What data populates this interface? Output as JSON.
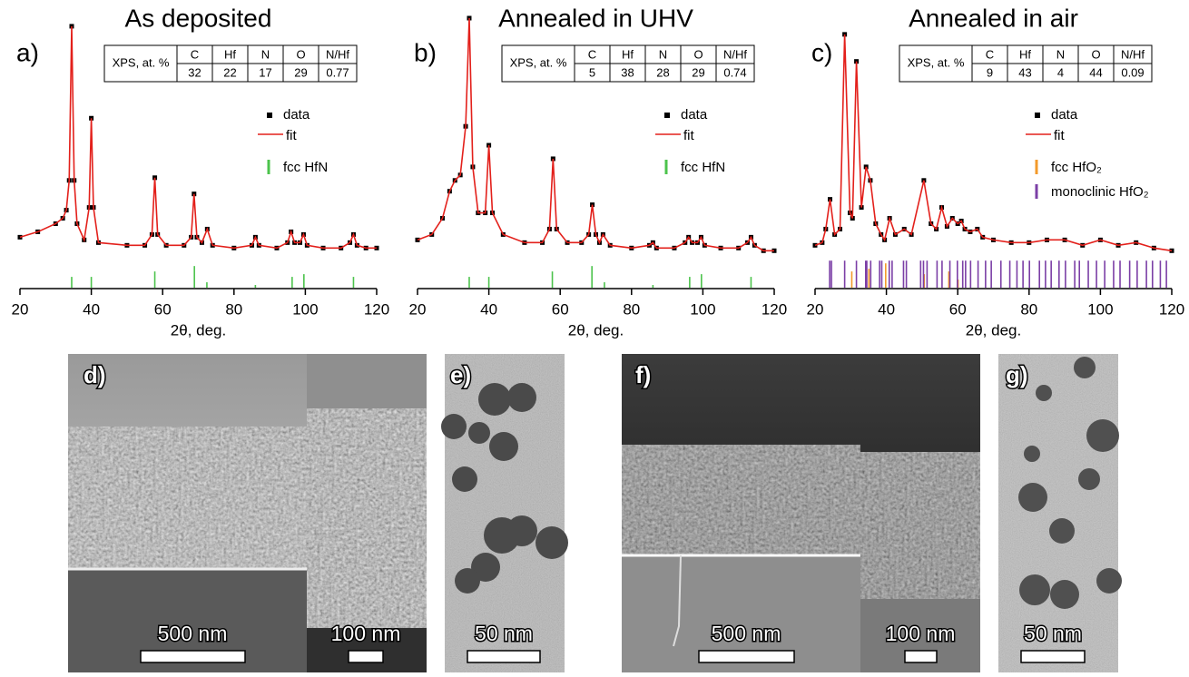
{
  "chart_data": [
    {
      "type": "line",
      "panel": "a)",
      "title": "As deposited",
      "xlabel": "2θ, deg.",
      "xlim": [
        20,
        120
      ],
      "xticks": [
        20,
        40,
        60,
        80,
        100,
        120
      ],
      "ylim": [
        0,
        100
      ],
      "table": {
        "header": [
          "XPS, at. %",
          "C",
          "Hf",
          "N",
          "O",
          "N/Hf"
        ],
        "row": [
          32,
          22,
          17,
          29,
          0.77
        ]
      },
      "x": [
        20,
        25,
        30,
        32,
        33,
        33.8,
        34.5,
        35.2,
        36,
        38,
        39.4,
        40,
        40.6,
        42,
        50,
        55,
        57,
        57.8,
        58.6,
        61,
        66,
        68,
        68.8,
        69.6,
        71,
        72.5,
        74,
        80,
        85,
        86,
        87,
        92,
        95,
        96,
        97,
        98.5,
        99.5,
        100.5,
        105,
        110,
        112.5,
        113.5,
        114.5,
        117,
        120
      ],
      "series": [
        {
          "name": "data",
          "color": "#000000",
          "values": [
            19,
            21,
            24,
            26,
            29,
            40,
            97,
            40,
            24,
            18,
            30,
            63,
            30,
            17,
            16,
            16,
            20,
            41,
            20,
            16,
            16,
            19,
            35,
            19,
            17,
            22,
            16,
            15,
            16,
            19,
            16,
            15,
            17,
            21,
            17,
            17,
            20,
            16,
            15,
            15,
            17,
            20,
            16,
            15,
            15
          ]
        },
        {
          "name": "fit",
          "color": "#e3201b",
          "values": [
            19,
            21,
            24,
            26,
            29,
            40,
            97,
            40,
            24,
            18,
            30,
            63,
            30,
            17,
            16,
            16,
            20,
            41,
            20,
            16,
            16,
            19,
            35,
            19,
            17,
            22,
            16,
            15,
            16,
            19,
            16,
            15,
            17,
            21,
            17,
            17,
            20,
            16,
            15,
            15,
            17,
            20,
            16,
            15,
            15
          ]
        }
      ],
      "references": [
        {
          "name": "fcc HfN",
          "color": "#4cc34c",
          "x": [
            34.5,
            40,
            57.8,
            68.9,
            72.4,
            86,
            96.3,
            99.6,
            113.5
          ],
          "values": [
            4,
            4,
            6,
            8,
            2,
            1,
            4,
            5,
            4
          ]
        }
      ]
    },
    {
      "type": "line",
      "panel": "b)",
      "title": "Annealed in UHV",
      "xlabel": "2θ, deg.",
      "xlim": [
        20,
        120
      ],
      "xticks": [
        20,
        40,
        60,
        80,
        100,
        120
      ],
      "ylim": [
        0,
        100
      ],
      "table": {
        "header": [
          "XPS, at. %",
          "C",
          "Hf",
          "N",
          "O",
          "N/Hf"
        ],
        "row": [
          5,
          38,
          28,
          29,
          0.74
        ]
      },
      "x": [
        20,
        24,
        27,
        29,
        30.5,
        32,
        33.5,
        34.5,
        35.5,
        37,
        39,
        40,
        41,
        44,
        50,
        55,
        57,
        58,
        59,
        62,
        66,
        68,
        69,
        70,
        71,
        72,
        74,
        80,
        85,
        86,
        87,
        92,
        95,
        96,
        97,
        98.5,
        99.5,
        100.5,
        105,
        110,
        112.5,
        113.5,
        114.5,
        117,
        120
      ],
      "series": [
        {
          "name": "data",
          "color": "#000000",
          "values": [
            18,
            20,
            26,
            36,
            40,
            42,
            60,
            100,
            45,
            28,
            28,
            53,
            28,
            20,
            17,
            17,
            22,
            48,
            22,
            17,
            17,
            20,
            31,
            20,
            17,
            20,
            16,
            15,
            16,
            17,
            15,
            15,
            17,
            19,
            17,
            17,
            19,
            16,
            15,
            15,
            17,
            19,
            16,
            14,
            14
          ]
        },
        {
          "name": "fit",
          "color": "#e3201b",
          "values": [
            18,
            20,
            26,
            36,
            40,
            42,
            60,
            100,
            45,
            28,
            28,
            53,
            28,
            20,
            17,
            17,
            22,
            48,
            22,
            17,
            17,
            20,
            31,
            20,
            17,
            20,
            16,
            15,
            16,
            17,
            15,
            15,
            17,
            19,
            17,
            17,
            19,
            16,
            15,
            15,
            17,
            19,
            16,
            14,
            14
          ]
        }
      ],
      "references": [
        {
          "name": "fcc HfN",
          "color": "#4cc34c",
          "x": [
            34.5,
            40,
            57.8,
            68.9,
            72.4,
            86,
            96.3,
            99.6,
            113.5
          ],
          "values": [
            4,
            4,
            6,
            8,
            2,
            1,
            4,
            5,
            4
          ]
        }
      ]
    },
    {
      "type": "line",
      "panel": "c)",
      "title": "Annealed in air",
      "xlabel": "2θ, deg.",
      "xlim": [
        20,
        120
      ],
      "xticks": [
        20,
        40,
        60,
        80,
        100,
        120
      ],
      "ylim": [
        0,
        100
      ],
      "table": {
        "header": [
          "XPS, at. %",
          "C",
          "Hf",
          "N",
          "O",
          "N/Hf"
        ],
        "row": [
          9,
          43,
          4,
          44,
          0.09
        ]
      },
      "x": [
        20,
        22,
        23,
        24.2,
        25.5,
        27,
        28.3,
        29.8,
        30.5,
        31.6,
        33,
        34.3,
        35.5,
        37,
        38.5,
        39.5,
        40.9,
        42.5,
        45,
        47,
        50.5,
        52.5,
        54,
        55.5,
        57,
        58.5,
        60,
        61,
        62,
        63.5,
        65.5,
        67,
        70,
        75,
        80,
        85,
        90,
        95,
        100,
        105,
        110,
        115,
        120
      ],
      "series": [
        {
          "name": "data",
          "color": "#000000",
          "values": [
            16,
            17,
            22,
            33,
            20,
            22,
            94,
            28,
            26,
            84,
            30,
            45,
            40,
            24,
            20,
            18,
            26,
            20,
            22,
            20,
            40,
            24,
            22,
            30,
            23,
            26,
            24,
            25,
            22,
            21,
            22,
            19,
            18,
            17,
            17,
            18,
            18,
            16,
            18,
            16,
            17,
            15,
            14
          ]
        },
        {
          "name": "fit",
          "color": "#e3201b",
          "values": [
            16,
            17,
            22,
            33,
            20,
            22,
            94,
            28,
            26,
            84,
            30,
            45,
            40,
            24,
            20,
            18,
            26,
            20,
            22,
            20,
            40,
            24,
            22,
            30,
            23,
            26,
            24,
            25,
            22,
            21,
            22,
            19,
            18,
            17,
            17,
            18,
            18,
            16,
            18,
            16,
            17,
            15,
            14
          ]
        }
      ],
      "references": [
        {
          "name": "fcc HfO₂",
          "color": "#f39a2b",
          "x": [
            30.3,
            35.1,
            39.8,
            50.6,
            57.5,
            60.1
          ],
          "values": [
            6,
            7,
            9,
            5,
            6,
            3
          ]
        },
        {
          "name": "monoclinic HfO₂",
          "color": "#7b3fa6",
          "x": [
            24.1,
            24.6,
            28.3,
            31.6,
            34.2,
            34.5,
            35.6,
            38.1,
            38.7,
            40.8,
            41.6,
            44.8,
            45.6,
            49.6,
            50.4,
            51.4,
            54.2,
            55.6,
            57.8,
            59.9,
            61.4,
            62.2,
            63.6,
            65.7,
            67.8,
            69.4,
            72.1,
            74.6,
            76.6,
            78.3,
            80.1,
            82.9,
            84.6,
            86.2,
            88.4,
            90.2,
            92.8,
            94.1,
            96.6,
            98.9,
            101.2,
            103.7,
            105.5,
            108.2,
            110.3,
            112.9,
            114.6,
            116.8,
            118.5
          ],
          "values": [
            10,
            10,
            10,
            10,
            10,
            10,
            10,
            10,
            10,
            10,
            10,
            10,
            10,
            10,
            10,
            10,
            10,
            10,
            10,
            10,
            10,
            10,
            10,
            10,
            10,
            10,
            10,
            10,
            10,
            10,
            10,
            10,
            10,
            10,
            10,
            10,
            10,
            10,
            10,
            10,
            10,
            10,
            10,
            10,
            10,
            10,
            10,
            10,
            10
          ]
        }
      ]
    }
  ],
  "images": [
    {
      "label": "d)",
      "scale_bars": [
        "500 nm",
        "100 nm"
      ]
    },
    {
      "label": "e)",
      "scale_bars": [
        "50 nm"
      ]
    },
    {
      "label": "f)",
      "scale_bars": [
        "500 nm",
        "100 nm"
      ]
    },
    {
      "label": "g)",
      "scale_bars": [
        "50 nm"
      ]
    }
  ]
}
